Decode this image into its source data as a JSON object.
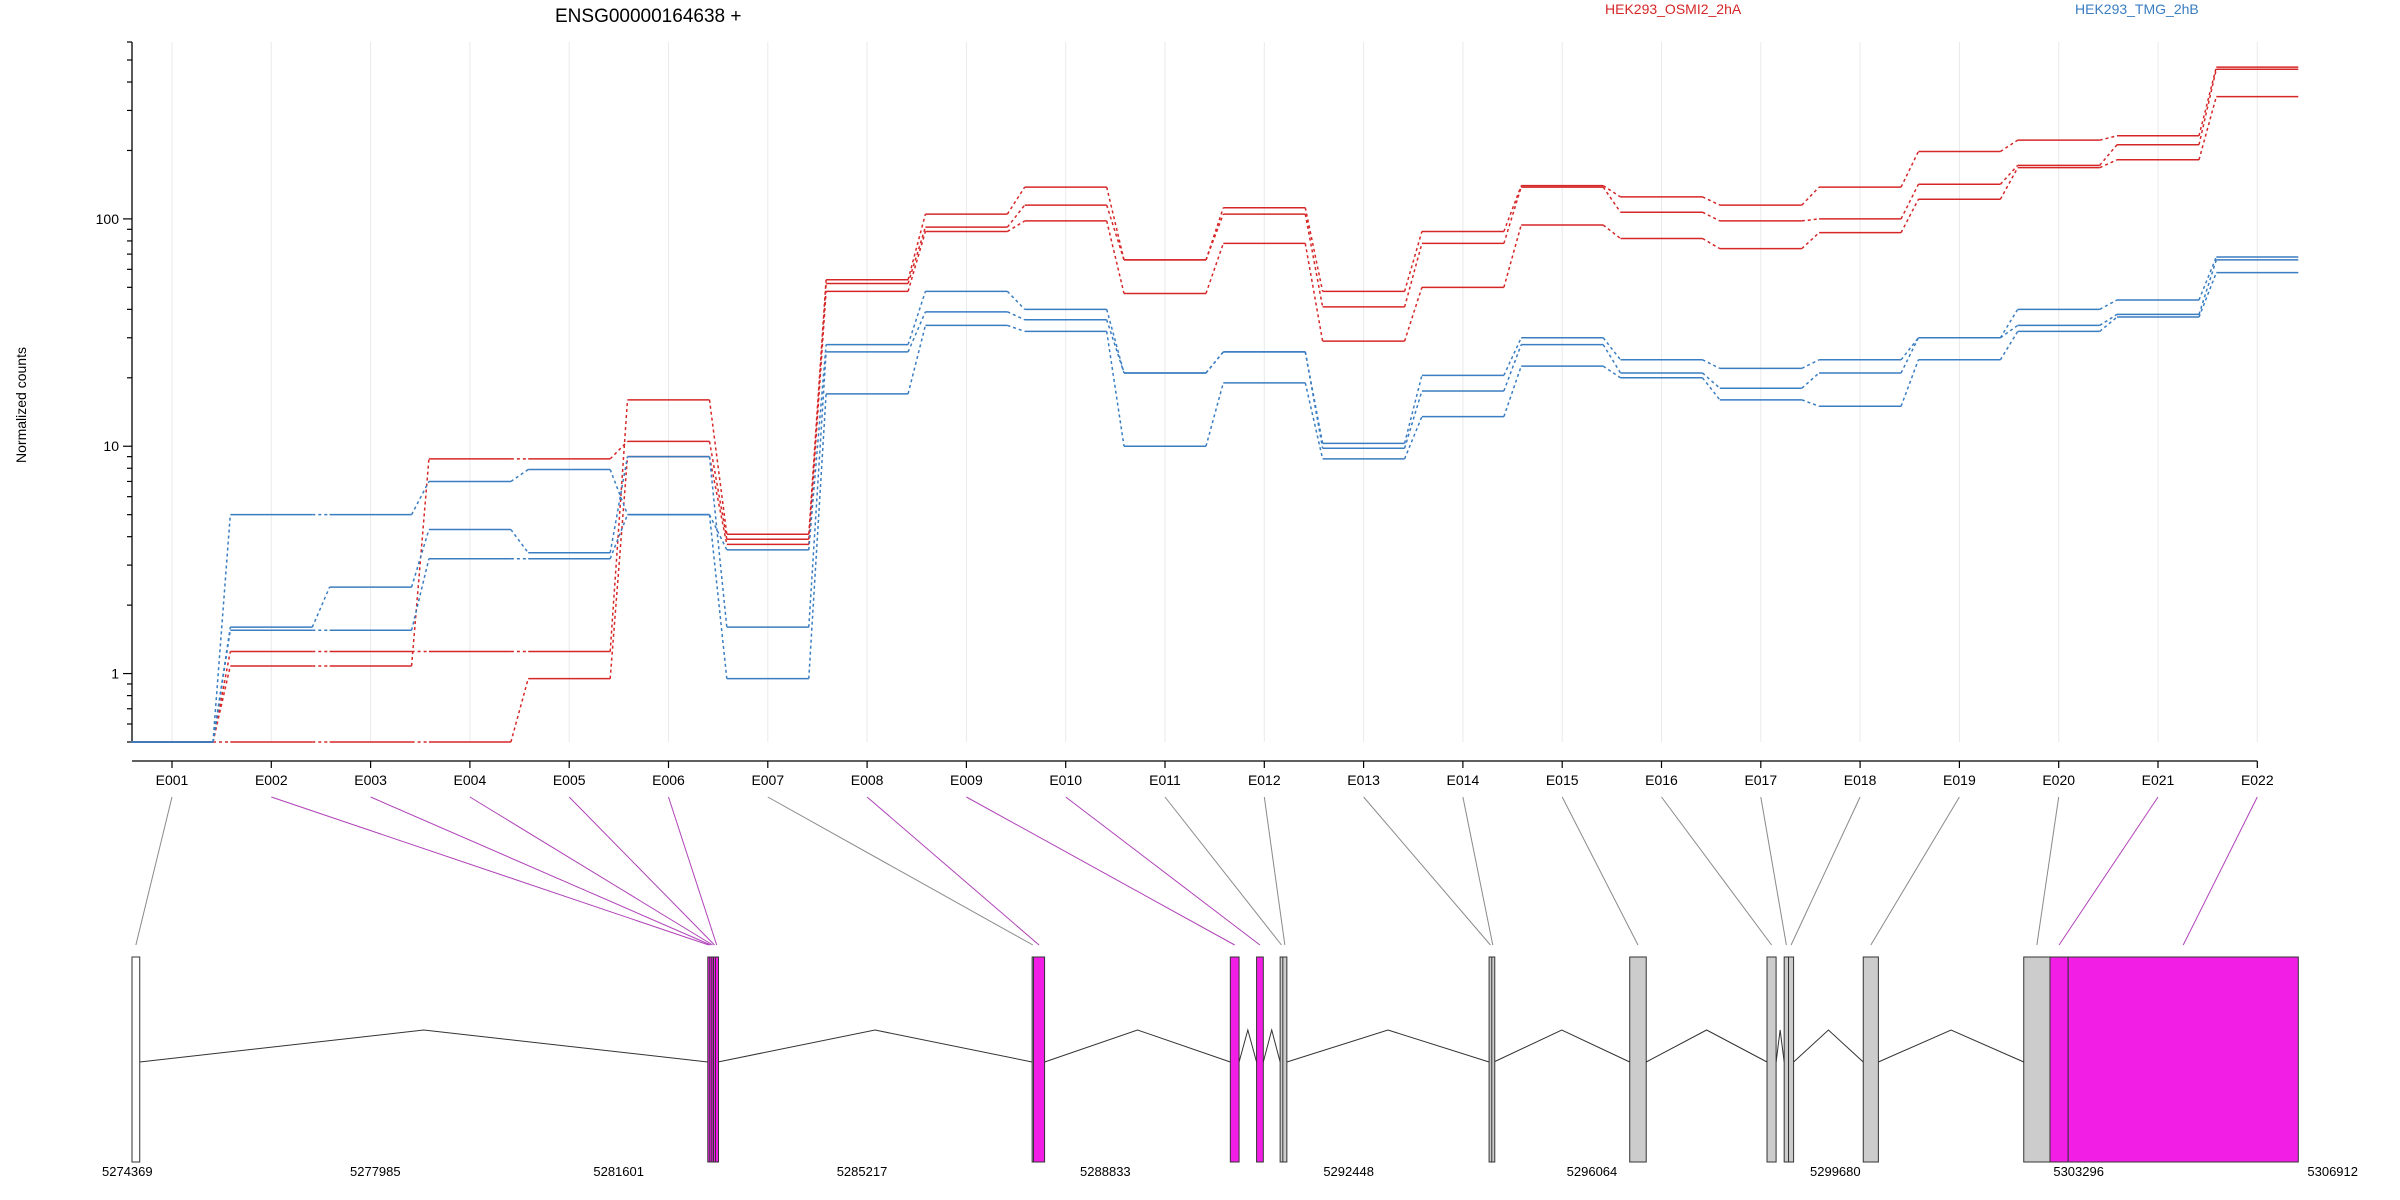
{
  "chart_data": {
    "type": "line",
    "title": "ENSG00000164638 +",
    "ylabel": "Normalized counts",
    "xlabel": "",
    "y_scale": "log",
    "ylim": [
      0.5,
      600
    ],
    "y_ticks": [
      1,
      10,
      100
    ],
    "y_tick_labels": [
      "1",
      "10",
      "100"
    ],
    "grid": true,
    "legend": [
      {
        "name": "HEK293_OSMI2_2hA",
        "color": "#d62728"
      },
      {
        "name": "HEK293_TMG_2hB",
        "color": "#3a7dc1"
      }
    ],
    "categories": [
      "E001",
      "E002",
      "E003",
      "E004",
      "E005",
      "E006",
      "E007",
      "E008",
      "E009",
      "E010",
      "E011",
      "E012",
      "E013",
      "E014",
      "E015",
      "E016",
      "E017",
      "E018",
      "E019",
      "E020",
      "E021",
      "E022"
    ],
    "series": [
      {
        "group": "HEK293_OSMI2_2hA",
        "color": "#d62728",
        "values": [
          0.5,
          1.25,
          1.25,
          1.25,
          1.25,
          16,
          4.1,
          54,
          105,
          138,
          66,
          112,
          48,
          88,
          140,
          125,
          115,
          138,
          198,
          222,
          232,
          465
        ]
      },
      {
        "group": "HEK293_OSMI2_2hA",
        "color": "#d62728",
        "values": [
          0.5,
          1.08,
          1.08,
          8.8,
          8.8,
          10.5,
          3.9,
          52,
          92,
          115,
          66,
          105,
          41,
          78,
          138,
          107,
          98,
          100,
          142,
          172,
          212,
          455
        ]
      },
      {
        "group": "HEK293_OSMI2_2hA",
        "color": "#d62728",
        "values": [
          0.5,
          0.5,
          0.5,
          0.5,
          0.95,
          9.0,
          3.7,
          48,
          88,
          98,
          47,
          78,
          29,
          50,
          94,
          82,
          74,
          87,
          122,
          168,
          182,
          345
        ]
      },
      {
        "group": "HEK293_TMG_2hB",
        "color": "#3a7dc1",
        "values": [
          0.5,
          5.0,
          5.0,
          7.0,
          7.9,
          5.0,
          3.5,
          28,
          48,
          40,
          21,
          26,
          10.3,
          20.5,
          30,
          24,
          22,
          24,
          30,
          40,
          44,
          68
        ]
      },
      {
        "group": "HEK293_TMG_2hB",
        "color": "#3a7dc1",
        "values": [
          0.5,
          1.6,
          2.4,
          4.3,
          3.4,
          9.0,
          1.6,
          26,
          39,
          36,
          21,
          26,
          9.8,
          17.5,
          28,
          21,
          18,
          21,
          30,
          34,
          38,
          66
        ]
      },
      {
        "group": "HEK293_TMG_2hB",
        "color": "#3a7dc1",
        "values": [
          0.5,
          1.55,
          1.55,
          3.2,
          3.2,
          5.0,
          0.95,
          17,
          34,
          32,
          10,
          19,
          8.8,
          13.5,
          22.5,
          20,
          16,
          15,
          24,
          32,
          37,
          58
        ]
      }
    ],
    "gene_model": {
      "coord_labels": [
        "5274369",
        "5277985",
        "5281601",
        "5285217",
        "5288833",
        "5292448",
        "5296064",
        "5299680",
        "5303296",
        "5306912"
      ],
      "coord_ticks": [
        5274369,
        5277985,
        5281601,
        5285217,
        5288833,
        5292448,
        5296064,
        5299680,
        5303296,
        5306912
      ],
      "exon_range": [
        5274369,
        5306912
      ],
      "exons": [
        {
          "id": "E001",
          "start": 5274369,
          "end": 5274484,
          "highlight": false
        },
        {
          "id": "E002",
          "start": 5282925,
          "end": 5282955,
          "highlight": true
        },
        {
          "id": "E003",
          "start": 5282955,
          "end": 5282985,
          "highlight": true
        },
        {
          "id": "E004",
          "start": 5282985,
          "end": 5283010,
          "highlight": true
        },
        {
          "id": "E005",
          "start": 5283010,
          "end": 5283040,
          "highlight": true
        },
        {
          "id": "E006",
          "start": 5283040,
          "end": 5283075,
          "highlight": true
        },
        {
          "id": "E007",
          "start": 5287745,
          "end": 5287765,
          "highlight": false
        },
        {
          "id": "E008",
          "start": 5287765,
          "end": 5287930,
          "highlight": true
        },
        {
          "id": "E009",
          "start": 5290690,
          "end": 5290820,
          "highlight": true
        },
        {
          "id": "E010",
          "start": 5291080,
          "end": 5291180,
          "highlight": true
        },
        {
          "id": "E011",
          "start": 5291430,
          "end": 5291470,
          "highlight": false
        },
        {
          "id": "E012",
          "start": 5291470,
          "end": 5291530,
          "highlight": false
        },
        {
          "id": "E013",
          "start": 5294535,
          "end": 5294575,
          "highlight": false
        },
        {
          "id": "E014",
          "start": 5294575,
          "end": 5294605,
          "highlight": false
        },
        {
          "id": "E015",
          "start": 5296625,
          "end": 5296870,
          "highlight": false
        },
        {
          "id": "E016",
          "start": 5298665,
          "end": 5298800,
          "highlight": false
        },
        {
          "id": "E017",
          "start": 5298920,
          "end": 5298985,
          "highlight": false
        },
        {
          "id": "E018",
          "start": 5298985,
          "end": 5299060,
          "highlight": false
        },
        {
          "id": "E019",
          "start": 5300095,
          "end": 5300320,
          "highlight": false
        },
        {
          "id": "E020",
          "start": 5302480,
          "end": 5302870,
          "highlight": false
        },
        {
          "id": "E021",
          "start": 5302870,
          "end": 5303140,
          "highlight": true
        },
        {
          "id": "E022",
          "start": 5303140,
          "end": 5306560,
          "highlight": true
        }
      ]
    }
  }
}
